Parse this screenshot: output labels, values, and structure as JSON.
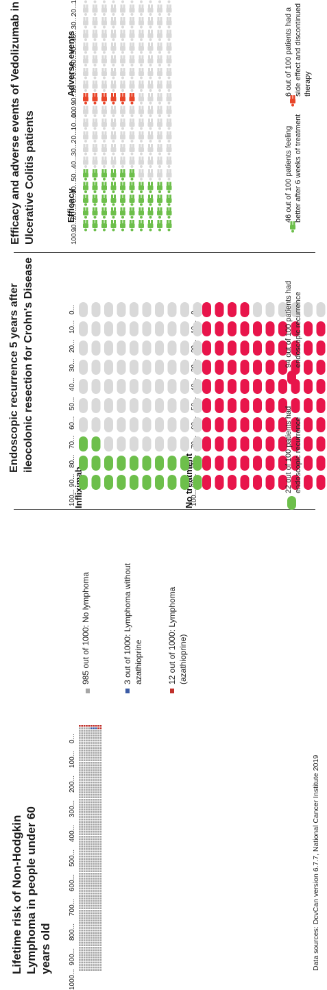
{
  "colors": {
    "grey": "#d9d9d9",
    "blue": "#3b5ba5",
    "dark_red": "#c0302b",
    "crimson": "#e8154b",
    "green": "#6dbf4b",
    "orange_red": "#e8462a",
    "divider": "#444444"
  },
  "panel1": {
    "title": "Lifetime risk of Non-Hodgkin\nLymphoma in people under 60\nyears old",
    "source": "Data sources: DcvCan version 6.7.7, National Cancer Institute 2019",
    "legend": [
      {
        "label": "985 out of 1000: No lymphoma",
        "color": "#a6a6a6"
      },
      {
        "label": "3 out of 1000: Lymphoma without azathioprine",
        "color": "#3b5ba5"
      },
      {
        "label": "12 out of 1000: Lymphoma (azathioprine)",
        "color": "#c0302b"
      }
    ],
    "ticks": [
      "1000...",
      "900...",
      "800...",
      "700...",
      "600...",
      "500...",
      "400...",
      "300...",
      "200...",
      "100...",
      "0..."
    ]
  },
  "panel2": {
    "title": "Endoscopic recurrence 5 years after\nileocolonic resection for Crohn's Disease",
    "infliximab_label": "Infliximab",
    "no_treatment_label": "No treatment",
    "infliximab_legend": "22 out of 100 patients had endoscopic recurrence",
    "no_treatment_legend": "94 out of 100 patients had endoscopic recurrence",
    "ticks": [
      "100...",
      "90...",
      "80...",
      "70...",
      "60...",
      "50...",
      "40...",
      "30...",
      "20...",
      "10...",
      "0..."
    ]
  },
  "panel3": {
    "title": "Efficacy and adverse events of Vedolizumab in\nUlcerative Colitis patients",
    "efficacy_label": "Efficacy",
    "adverse_label": "Adverse events",
    "efficacy_legend": "46 out of 100 patients feeling better after 6 weeks of treatment",
    "adverse_legend": "6 out of 100 patients had a side effect and discontinued therapy",
    "ticks": [
      "100...",
      "90...",
      "80...",
      "70...",
      "60...",
      "50...",
      "40...",
      "30...",
      "20...",
      "10...",
      "0..."
    ]
  },
  "chart_data": [
    {
      "type": "pictograph",
      "title": "Lifetime risk of Non-Hodgkin Lymphoma in people under 60 years old",
      "total": 1000,
      "series": [
        {
          "name": "985 out of 1000: No lymphoma",
          "value": 985
        },
        {
          "name": "3 out of 1000: Lymphoma without azathioprine",
          "value": 3
        },
        {
          "name": "12 out of 1000: Lymphoma (azathioprine)",
          "value": 12
        }
      ],
      "axis_ticks": [
        1000,
        900,
        800,
        700,
        600,
        500,
        400,
        300,
        200,
        100,
        0
      ]
    },
    {
      "type": "pictograph",
      "title": "Endoscopic recurrence 5 years after ileocolonic resection for Crohn's Disease",
      "total": 100,
      "groups": [
        {
          "name": "Infliximab",
          "value": 22,
          "legend": "22 out of 100 patients had endoscopic recurrence"
        },
        {
          "name": "No treatment",
          "value": 94,
          "legend": "94 out of 100 patients had endoscopic recurrence"
        }
      ],
      "axis_ticks": [
        100,
        90,
        80,
        70,
        60,
        50,
        40,
        30,
        20,
        10,
        0
      ]
    },
    {
      "type": "pictograph",
      "title": "Efficacy and adverse events of Vedolizumab in Ulcerative Colitis patients",
      "total": 100,
      "groups": [
        {
          "name": "Efficacy",
          "value": 46,
          "legend": "46 out of 100 patients feeling better after 6 weeks of treatment"
        },
        {
          "name": "Adverse events",
          "value": 6,
          "legend": "6 out of 100 patients had a side effect and discontinued therapy"
        }
      ],
      "axis_ticks": [
        100,
        90,
        80,
        70,
        60,
        50,
        40,
        30,
        20,
        10,
        0
      ]
    }
  ]
}
